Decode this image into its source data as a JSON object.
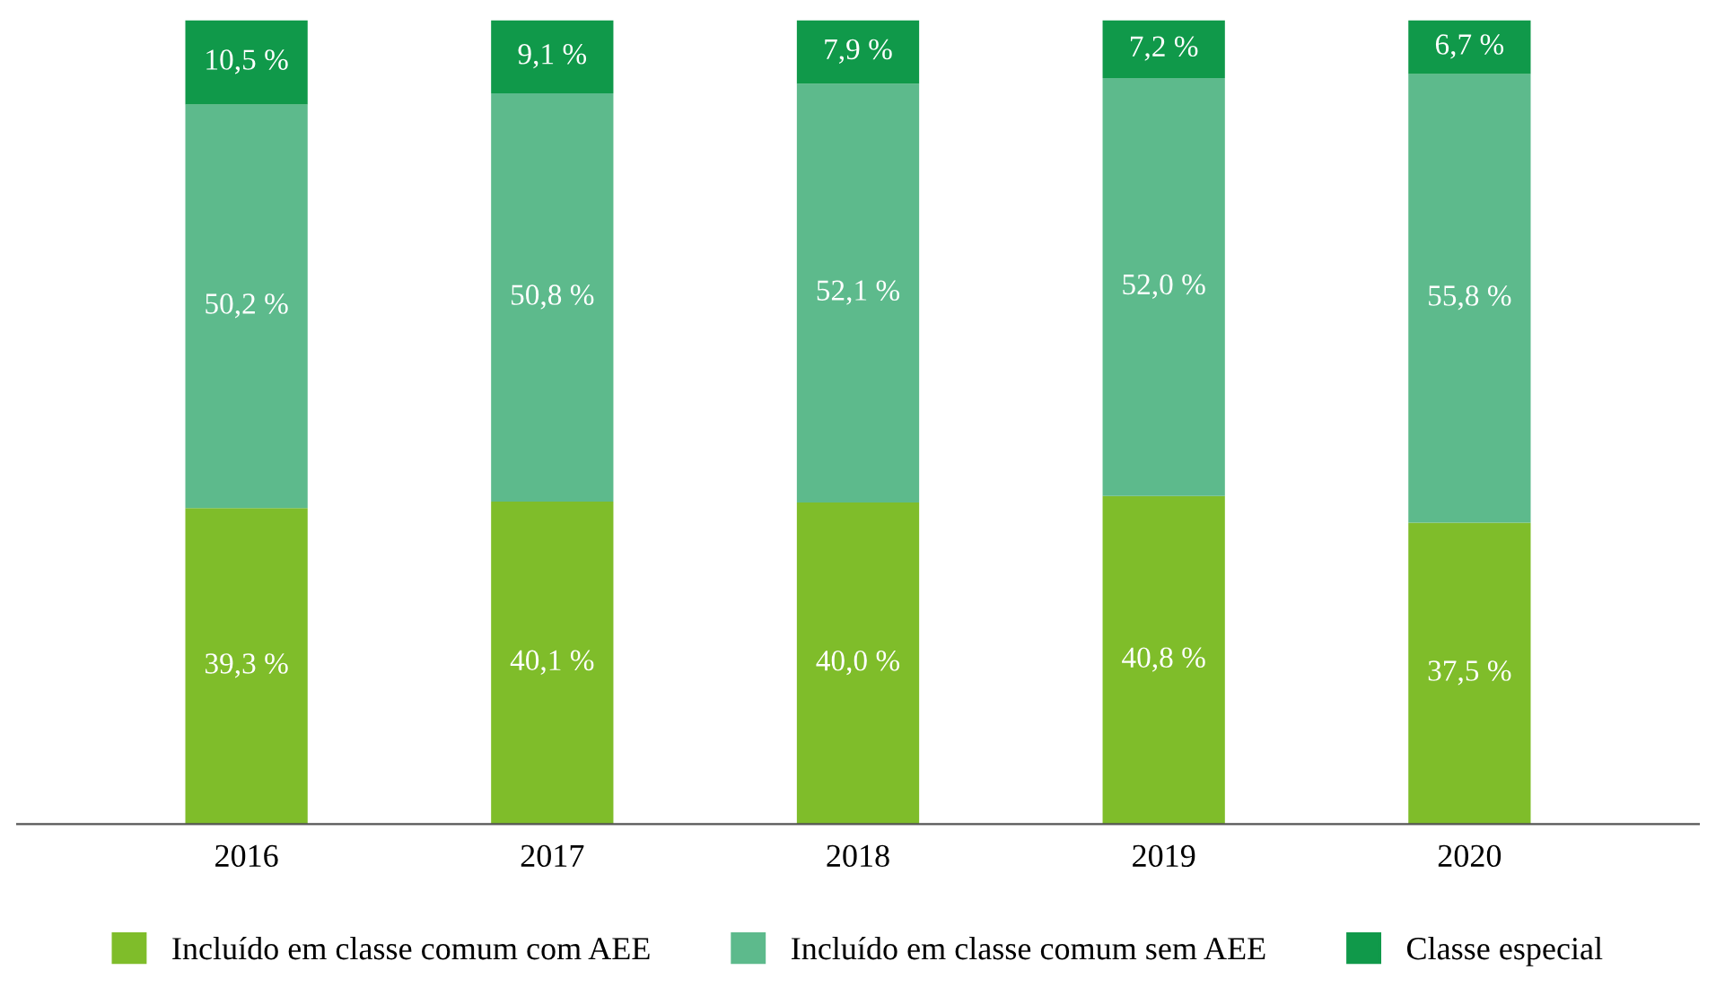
{
  "chart_data": {
    "type": "bar",
    "stacked": true,
    "categories": [
      "2016",
      "2017",
      "2018",
      "2019",
      "2020"
    ],
    "series": [
      {
        "name": "Incluído em classe comum com AEE",
        "color": "#7fbd2a",
        "values": [
          39.3,
          40.1,
          40.0,
          40.8,
          37.5
        ],
        "value_labels": [
          "39,3 %",
          "40,1 %",
          "40,0 %",
          "40,8 %",
          "37,5 %"
        ]
      },
      {
        "name": "Incluído em classe comum sem AEE",
        "color": "#5dba8c",
        "values": [
          50.2,
          50.8,
          52.1,
          52.0,
          55.8
        ],
        "value_labels": [
          "50,2 %",
          "50,8 %",
          "52,1 %",
          "52,0 %",
          "55,8 %"
        ]
      },
      {
        "name": "Classe especial",
        "color": "#10994a",
        "values": [
          10.5,
          9.1,
          7.9,
          7.2,
          6.7
        ],
        "value_labels": [
          "10,5 %",
          "9,1 %",
          "7,9 %",
          "7,2 %",
          "6,7 %"
        ]
      }
    ],
    "legend": "bottom",
    "grid": false
  }
}
